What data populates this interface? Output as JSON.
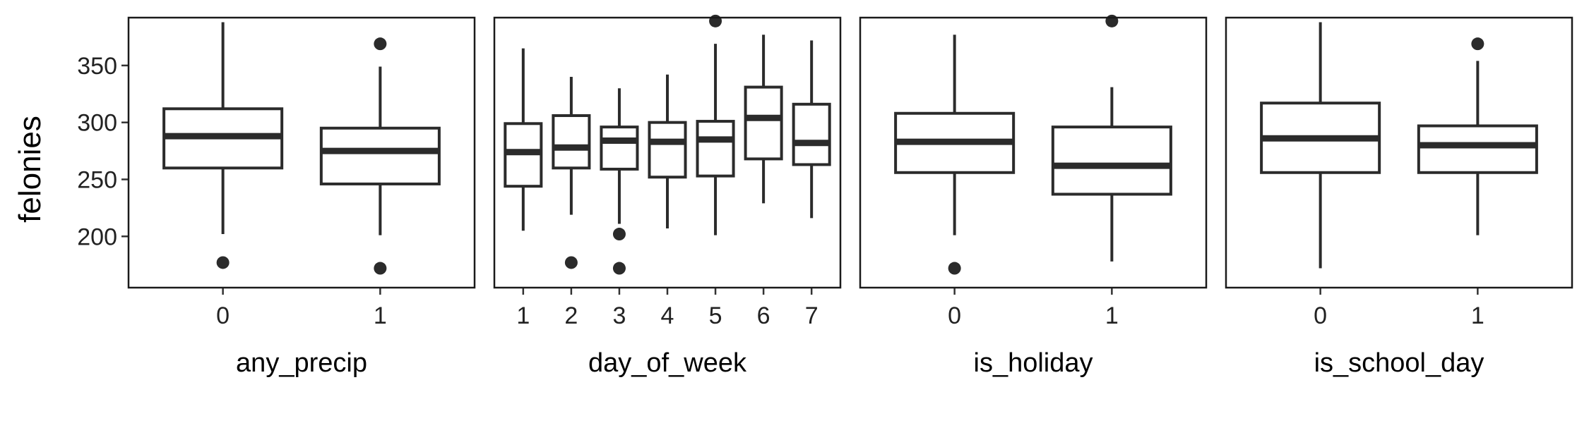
{
  "chart_data": {
    "type": "boxplot",
    "ylabel": "felonies",
    "ylim": [
      155,
      392
    ],
    "yticks": [
      200,
      250,
      300,
      350
    ],
    "grid": false,
    "colors": {
      "line": "#2b2b2b",
      "fill": "#ffffff",
      "border": "#1a1a1a"
    },
    "panels": [
      {
        "xlabel": "any_precip",
        "boxes": [
          {
            "category": "0",
            "min": 202,
            "q1": 260,
            "median": 288,
            "q3": 312,
            "max": 388,
            "outliers": [
              177
            ]
          },
          {
            "category": "1",
            "min": 201,
            "q1": 246,
            "median": 275,
            "q3": 295,
            "max": 349,
            "outliers": [
              369,
              172
            ]
          }
        ]
      },
      {
        "xlabel": "day_of_week",
        "boxes": [
          {
            "category": "1",
            "min": 205,
            "q1": 244,
            "median": 274,
            "q3": 299,
            "max": 365,
            "outliers": []
          },
          {
            "category": "2",
            "min": 219,
            "q1": 260,
            "median": 278,
            "q3": 306,
            "max": 340,
            "outliers": [
              177
            ]
          },
          {
            "category": "3",
            "min": 211,
            "q1": 259,
            "median": 284,
            "q3": 296,
            "max": 330,
            "outliers": [
              202,
              172
            ]
          },
          {
            "category": "4",
            "min": 207,
            "q1": 252,
            "median": 283,
            "q3": 300,
            "max": 342,
            "outliers": []
          },
          {
            "category": "5",
            "min": 201,
            "q1": 253,
            "median": 285,
            "q3": 301,
            "max": 369,
            "outliers": [
              389
            ]
          },
          {
            "category": "6",
            "min": 229,
            "q1": 268,
            "median": 304,
            "q3": 331,
            "max": 377,
            "outliers": []
          },
          {
            "category": "7",
            "min": 216,
            "q1": 263,
            "median": 282,
            "q3": 316,
            "max": 372,
            "outliers": []
          }
        ]
      },
      {
        "xlabel": "is_holiday",
        "boxes": [
          {
            "category": "0",
            "min": 201,
            "q1": 256,
            "median": 283,
            "q3": 308,
            "max": 377,
            "outliers": [
              172
            ]
          },
          {
            "category": "1",
            "min": 178,
            "q1": 237,
            "median": 262,
            "q3": 296,
            "max": 331,
            "outliers": [
              389
            ]
          }
        ]
      },
      {
        "xlabel": "is_school_day",
        "boxes": [
          {
            "category": "0",
            "min": 172,
            "q1": 256,
            "median": 286,
            "q3": 317,
            "max": 388,
            "outliers": []
          },
          {
            "category": "1",
            "min": 201,
            "q1": 256,
            "median": 280,
            "q3": 297,
            "max": 354,
            "outliers": [
              369
            ]
          }
        ]
      }
    ]
  }
}
